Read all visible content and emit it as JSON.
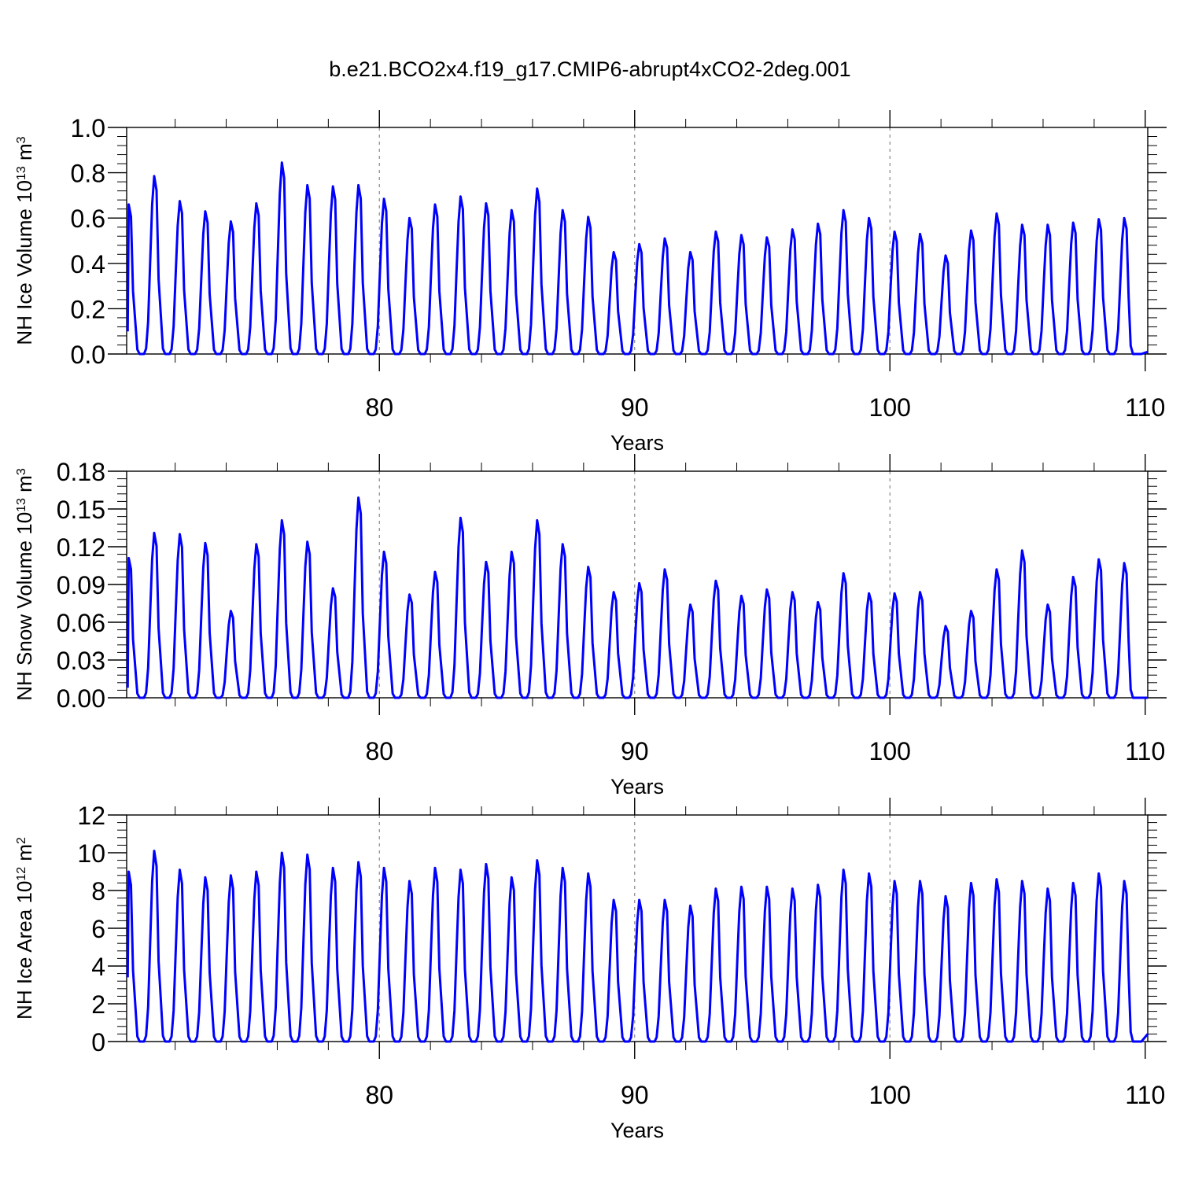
{
  "figure": {
    "title": "b.e21.BCO2x4.f19_g17.CMIP6-abrupt4xCO2-2deg.001",
    "line_color": "#0000ff",
    "grid_color": "#888888"
  },
  "chart_data": [
    {
      "type": "line",
      "xlabel": "Years",
      "ylabel_base": "NH Ice Volume 10",
      "ylabel_exp": "13",
      "ylabel_unit": " m",
      "ylabel_unit_exp": "3",
      "xlim": [
        70.1,
        110.1
      ],
      "ylim": [
        0.0,
        1.0
      ],
      "xticks": [
        80,
        90,
        100,
        110
      ],
      "xtick_labels": [
        "80",
        "90",
        "100",
        "110"
      ],
      "yticks": [
        0.0,
        0.2,
        0.4,
        0.6,
        0.8,
        1.0
      ],
      "ytick_labels": [
        "0.0",
        "0.2",
        "0.4",
        "0.6",
        "0.8",
        "1.0"
      ],
      "grid_x": [
        80,
        90,
        100
      ],
      "series": [
        {
          "name": "NH Ice Volume",
          "start_value": 0.1,
          "end_value": 0.01,
          "peaks": [
            0.66,
            0.785,
            0.675,
            0.63,
            0.585,
            0.665,
            0.845,
            0.745,
            0.74,
            0.745,
            0.685,
            0.6,
            0.66,
            0.695,
            0.665,
            0.635,
            0.73,
            0.635,
            0.605,
            0.45,
            0.485,
            0.51,
            0.45,
            0.54,
            0.525,
            0.515,
            0.55,
            0.575,
            0.635,
            0.6,
            0.54,
            0.53,
            0.435,
            0.545,
            0.62,
            0.57,
            0.57,
            0.58,
            0.595,
            0.6
          ]
        }
      ]
    },
    {
      "type": "line",
      "xlabel": "Years",
      "ylabel_base": "NH Snow Volume 10",
      "ylabel_exp": "13",
      "ylabel_unit": " m",
      "ylabel_unit_exp": "3",
      "xlim": [
        70.1,
        110.1
      ],
      "ylim": [
        0.0,
        0.18
      ],
      "xticks": [
        80,
        90,
        100,
        110
      ],
      "xtick_labels": [
        "80",
        "90",
        "100",
        "110"
      ],
      "yticks": [
        0.0,
        0.03,
        0.06,
        0.09,
        0.12,
        0.15,
        0.18
      ],
      "ytick_labels": [
        "0.00",
        "0.03",
        "0.06",
        "0.09",
        "0.12",
        "0.15",
        "0.18"
      ],
      "grid_x": [
        80,
        90,
        100
      ],
      "series": [
        {
          "name": "NH Snow Volume",
          "start_value": 0.008,
          "end_value": 0.0,
          "peaks": [
            0.111,
            0.131,
            0.13,
            0.123,
            0.069,
            0.122,
            0.141,
            0.124,
            0.087,
            0.159,
            0.116,
            0.082,
            0.1,
            0.143,
            0.108,
            0.116,
            0.141,
            0.122,
            0.104,
            0.084,
            0.091,
            0.102,
            0.074,
            0.093,
            0.081,
            0.086,
            0.084,
            0.076,
            0.099,
            0.083,
            0.083,
            0.084,
            0.057,
            0.069,
            0.102,
            0.117,
            0.074,
            0.096,
            0.11,
            0.107
          ]
        }
      ]
    },
    {
      "type": "line",
      "xlabel": "Years",
      "ylabel_base": "NH Ice Area 10",
      "ylabel_exp": "12",
      "ylabel_unit": " m",
      "ylabel_unit_exp": "2",
      "xlim": [
        70.1,
        110.1
      ],
      "ylim": [
        0,
        12
      ],
      "xticks": [
        80,
        90,
        100,
        110
      ],
      "xtick_labels": [
        "80",
        "90",
        "100",
        "110"
      ],
      "yticks": [
        0,
        2,
        4,
        6,
        8,
        10,
        12
      ],
      "ytick_labels": [
        "0",
        "2",
        "4",
        "6",
        "8",
        "10",
        "12"
      ],
      "grid_x": [
        80,
        90,
        100
      ],
      "series": [
        {
          "name": "NH Ice Area",
          "start_value": 3.4,
          "end_value": 0.4,
          "peaks": [
            9.0,
            10.1,
            9.1,
            8.7,
            8.8,
            9.0,
            10.0,
            9.9,
            9.2,
            9.5,
            9.2,
            8.5,
            9.2,
            9.1,
            9.4,
            8.7,
            9.6,
            9.2,
            8.9,
            7.5,
            7.5,
            7.5,
            7.2,
            8.1,
            8.2,
            8.2,
            8.1,
            8.3,
            9.1,
            8.9,
            8.5,
            8.5,
            7.7,
            8.4,
            8.6,
            8.5,
            8.1,
            8.4,
            8.9,
            8.5
          ]
        }
      ]
    }
  ]
}
